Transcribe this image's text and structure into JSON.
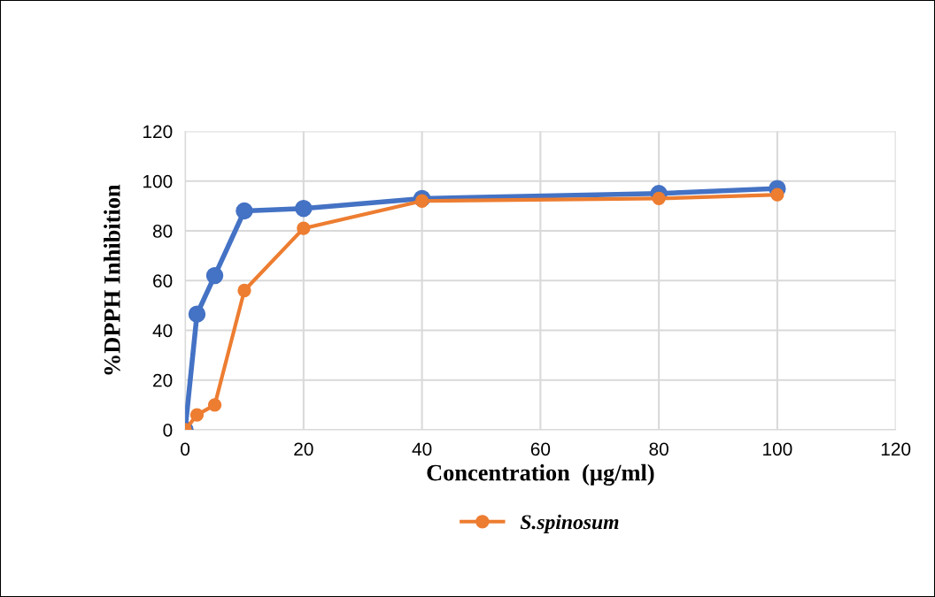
{
  "chart_data": {
    "type": "line",
    "xlabel": "Concentration  (µg/ml)",
    "ylabel": "%DPPH Inhibition",
    "x": [
      0,
      2,
      5,
      10,
      20,
      40,
      80,
      100
    ],
    "series": [
      {
        "color": "#4472c4",
        "values": [
          0,
          46.5,
          62,
          88,
          89,
          93,
          95,
          97
        ]
      },
      {
        "name": "S.spinosum",
        "color": "#ed7d31",
        "values": [
          0,
          6,
          10,
          56,
          81,
          92,
          93,
          94.5
        ]
      }
    ],
    "xlim": [
      0,
      120
    ],
    "xticks": [
      0,
      20,
      40,
      60,
      80,
      100,
      120
    ],
    "ylim": [
      0,
      120
    ],
    "yticks": [
      0,
      20,
      40,
      60,
      80,
      100,
      120
    ],
    "grid": true,
    "legend": "bottom",
    "marker": "circle",
    "line_style": "solid"
  }
}
